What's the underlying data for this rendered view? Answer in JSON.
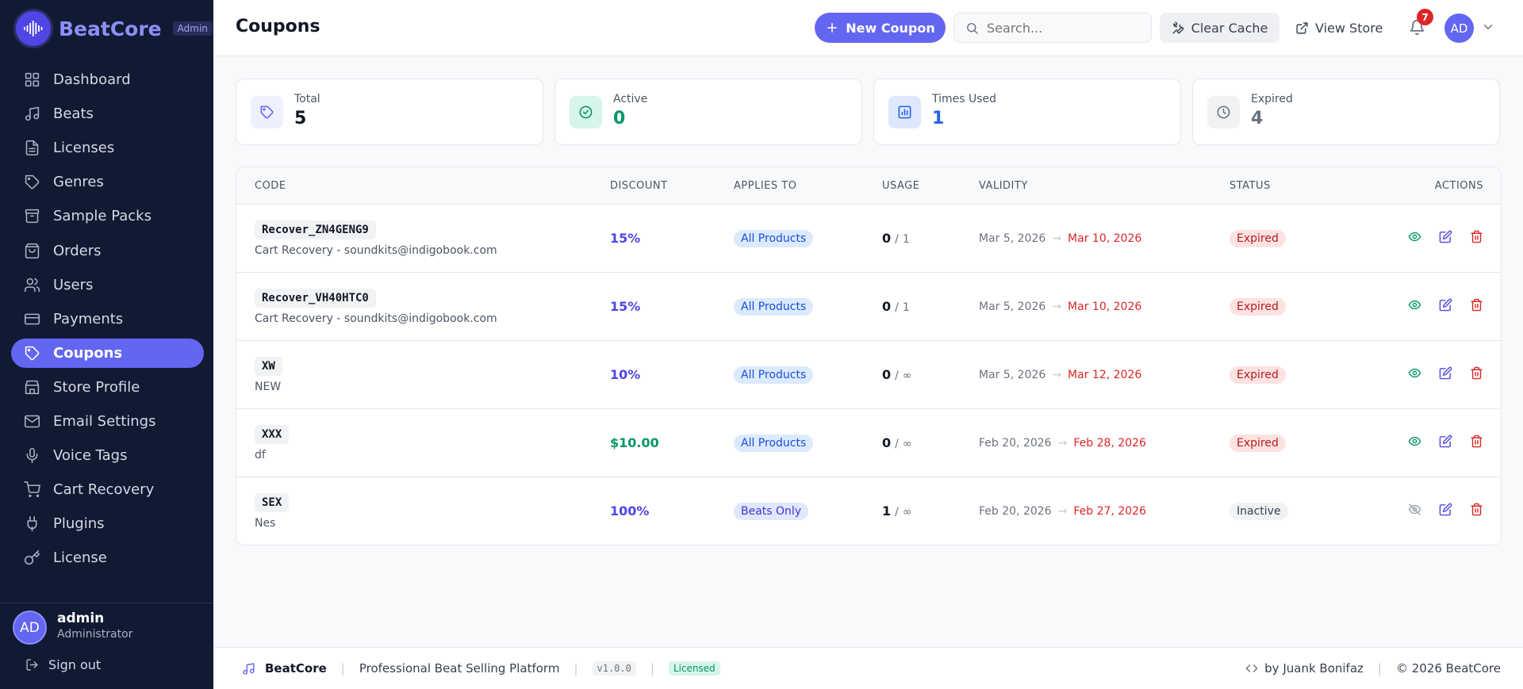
{
  "brand": {
    "name": "BeatCore",
    "badge": "Admin"
  },
  "nav": [
    {
      "label": "Dashboard",
      "icon": "grid"
    },
    {
      "label": "Beats",
      "icon": "music"
    },
    {
      "label": "Licenses",
      "icon": "file"
    },
    {
      "label": "Genres",
      "icon": "tag"
    },
    {
      "label": "Sample Packs",
      "icon": "box"
    },
    {
      "label": "Orders",
      "icon": "bag"
    },
    {
      "label": "Users",
      "icon": "users"
    },
    {
      "label": "Payments",
      "icon": "card"
    },
    {
      "label": "Coupons",
      "icon": "tag",
      "active": true
    },
    {
      "label": "Store Profile",
      "icon": "store"
    },
    {
      "label": "Email Settings",
      "icon": "mail"
    },
    {
      "label": "Voice Tags",
      "icon": "mic"
    },
    {
      "label": "Cart Recovery",
      "icon": "cart"
    },
    {
      "label": "Plugins",
      "icon": "plug"
    },
    {
      "label": "License",
      "icon": "key"
    }
  ],
  "user": {
    "initials": "AD",
    "name": "admin",
    "role": "Administrator",
    "sign_out": "Sign out"
  },
  "header": {
    "title": "Coupons",
    "new_button": "New Coupon",
    "search_placeholder": "Search...",
    "clear_cache": "Clear Cache",
    "view_store": "View Store",
    "notifications": 7,
    "avatar": "AD"
  },
  "stats": [
    {
      "label": "Total",
      "value": 5,
      "color": "#111827",
      "icon": "tag",
      "icon_color": "#6366f1",
      "icon_bg": "#eef0fd"
    },
    {
      "label": "Active",
      "value": 0,
      "color": "#059669",
      "icon": "check",
      "icon_color": "#059669",
      "icon_bg": "#d7f5e8"
    },
    {
      "label": "Times Used",
      "value": 1,
      "color": "#2563eb",
      "icon": "chart",
      "icon_color": "#2563eb",
      "icon_bg": "#dde8fd"
    },
    {
      "label": "Expired",
      "value": 4,
      "color": "#6b7280",
      "icon": "clock",
      "icon_color": "#6b7280",
      "icon_bg": "#f1f2f4"
    }
  ],
  "table": {
    "columns": [
      "CODE",
      "DISCOUNT",
      "APPLIES TO",
      "USAGE",
      "VALIDITY",
      "STATUS",
      "ACTIONS"
    ],
    "rows": [
      {
        "code": "Recover_ZN4GENG9",
        "note": "Cart Recovery - soundkits@indigobook.com",
        "discount": "15%",
        "discount_color": "#4f46e5",
        "applies": "All Products",
        "applies_color": "#1d4ed8",
        "applies_bg": "#dbeafe",
        "used": 0,
        "limit": 1,
        "from": "Mar 5, 2026",
        "to": "Mar 10, 2026",
        "status": "Expired",
        "status_color": "#b91c1c",
        "status_bg": "#fde2e2",
        "visible": true
      },
      {
        "code": "Recover_VH40HTC0",
        "note": "Cart Recovery - soundkits@indigobook.com",
        "discount": "15%",
        "discount_color": "#4f46e5",
        "applies": "All Products",
        "applies_color": "#1d4ed8",
        "applies_bg": "#dbeafe",
        "used": 0,
        "limit": 1,
        "from": "Mar 5, 2026",
        "to": "Mar 10, 2026",
        "status": "Expired",
        "status_color": "#b91c1c",
        "status_bg": "#fde2e2",
        "visible": true
      },
      {
        "code": "XW",
        "note": "NEW",
        "discount": "10%",
        "discount_color": "#4f46e5",
        "applies": "All Products",
        "applies_color": "#1d4ed8",
        "applies_bg": "#dbeafe",
        "used": 0,
        "limit": "∞",
        "from": "Mar 5, 2026",
        "to": "Mar 12, 2026",
        "status": "Expired",
        "status_color": "#b91c1c",
        "status_bg": "#fde2e2",
        "visible": true
      },
      {
        "code": "XXX",
        "note": "df",
        "discount": "$10.00",
        "discount_color": "#059669",
        "applies": "All Products",
        "applies_color": "#1d4ed8",
        "applies_bg": "#dbeafe",
        "used": 0,
        "limit": "∞",
        "from": "Feb 20, 2026",
        "to": "Feb 28, 2026",
        "status": "Expired",
        "status_color": "#b91c1c",
        "status_bg": "#fde2e2",
        "visible": true
      },
      {
        "code": "SEX",
        "note": "Nes",
        "discount": "100%",
        "discount_color": "#4f46e5",
        "applies": "Beats Only",
        "applies_color": "#4338ca",
        "applies_bg": "#e0e7ff",
        "used": 1,
        "limit": "∞",
        "from": "Feb 20, 2026",
        "to": "Feb 27, 2026",
        "status": "Inactive",
        "status_color": "#374151",
        "status_bg": "#f1f2f4",
        "visible": false
      }
    ]
  },
  "footer": {
    "brand": "BeatCore",
    "tagline": "Professional Beat Selling Platform",
    "version": "v1.0.0",
    "license": "Licensed",
    "author": "by Juank Bonifaz",
    "copyright": "© 2026 BeatCore"
  }
}
